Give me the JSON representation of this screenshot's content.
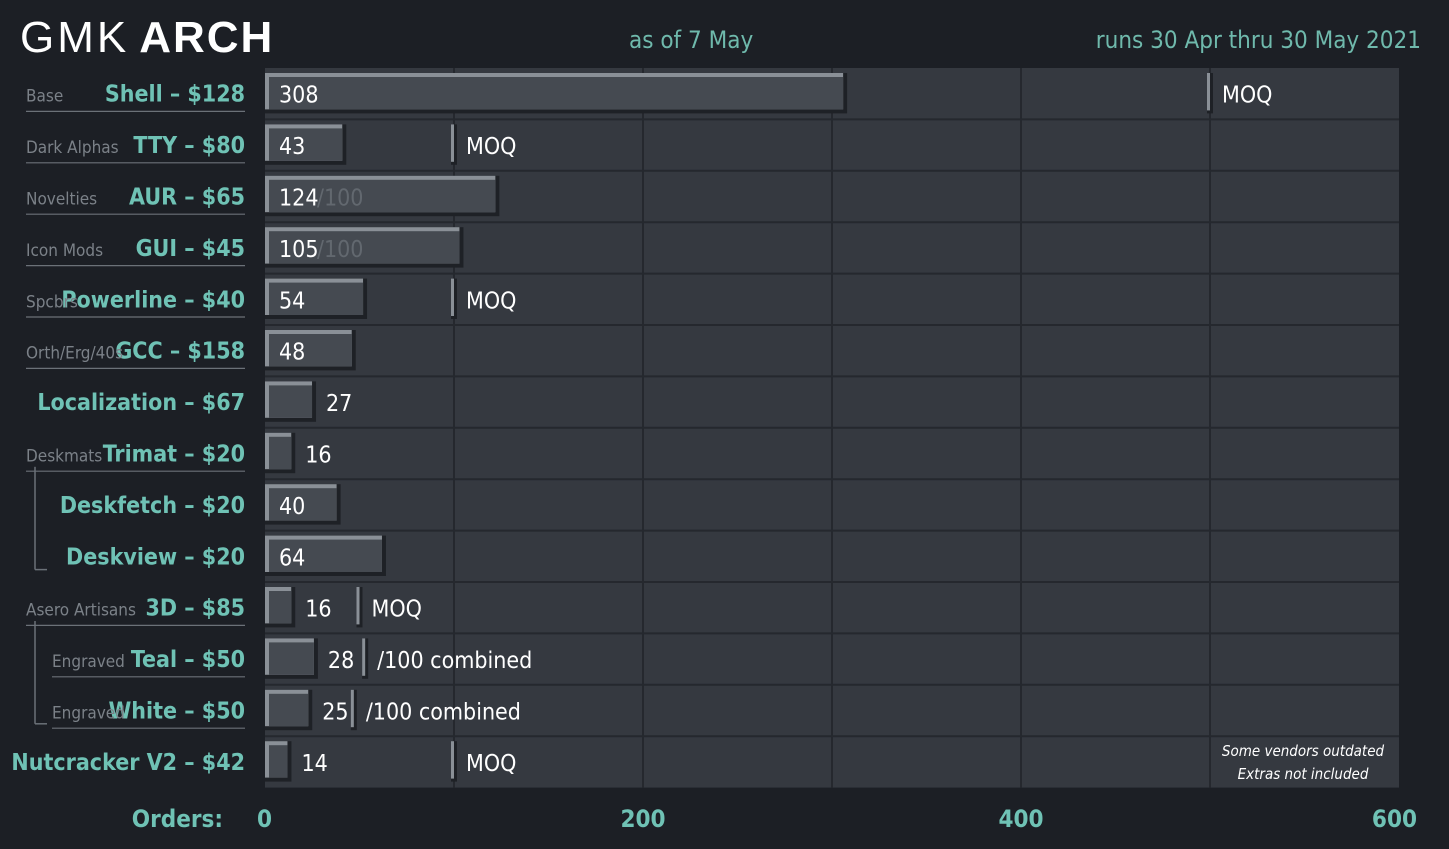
{
  "header": {
    "logo_light": "GMK",
    "logo_bold": "ARCH",
    "status_date": "as of 7 May",
    "run_dates": "runs 30 Apr thru 30 May 2021"
  },
  "chart_data": {
    "type": "bar",
    "orientation": "horizontal",
    "xlabel": "Orders:",
    "xlim": [
      0,
      600
    ],
    "xticks": [
      0,
      200,
      400,
      600
    ],
    "grid": true,
    "rows": [
      {
        "category": "Base",
        "label": "Shell – $128",
        "value": 308,
        "moq": 500,
        "moq_label": "MOQ"
      },
      {
        "category": "Dark Alphas",
        "label": "TTY – $80",
        "value": 43,
        "moq": 100,
        "moq_label": "MOQ"
      },
      {
        "category": "Novelties",
        "label": "AUR – $65",
        "value": 124,
        "target_label": "/100"
      },
      {
        "category": "Icon Mods",
        "label": "GUI – $45",
        "value": 105,
        "target_label": "/100"
      },
      {
        "category": "Spcbrs",
        "label": "Powerline – $40",
        "value": 54,
        "moq": 100,
        "moq_label": "MOQ"
      },
      {
        "category": "Orth/Erg/40s",
        "label": "GCC – $158",
        "value": 48
      },
      {
        "category": "",
        "label": "Localization – $67",
        "value": 27
      },
      {
        "category": "Deskmats",
        "label": "Trimat – $20",
        "value": 16
      },
      {
        "category": "",
        "label": "Deskfetch – $20",
        "value": 40,
        "group": "Deskmats"
      },
      {
        "category": "",
        "label": "Deskview – $20",
        "value": 64,
        "group": "Deskmats"
      },
      {
        "category": "Asero Artisans",
        "label": "3D – $85",
        "value": 16,
        "moq": 50,
        "moq_label": "MOQ"
      },
      {
        "category": "Engraved",
        "label": "Teal – $50",
        "value": 28,
        "moq": 53,
        "moq_label": "/100 combined",
        "group": "Asero Artisans"
      },
      {
        "category": "Engraved",
        "label": "White – $50",
        "value": 25,
        "moq": 47,
        "moq_label": "/100 combined",
        "group": "Asero Artisans"
      },
      {
        "category": "",
        "label": "Nutcracker V2 – $42",
        "value": 14,
        "moq": 100,
        "moq_label": "MOQ"
      }
    ],
    "notes": [
      "Some vendors outdated",
      "Extras not included"
    ],
    "colors": {
      "background": "#1c1f25",
      "plot": "#353940",
      "bar": "#454a51",
      "accent": "#6fc2b5"
    }
  }
}
